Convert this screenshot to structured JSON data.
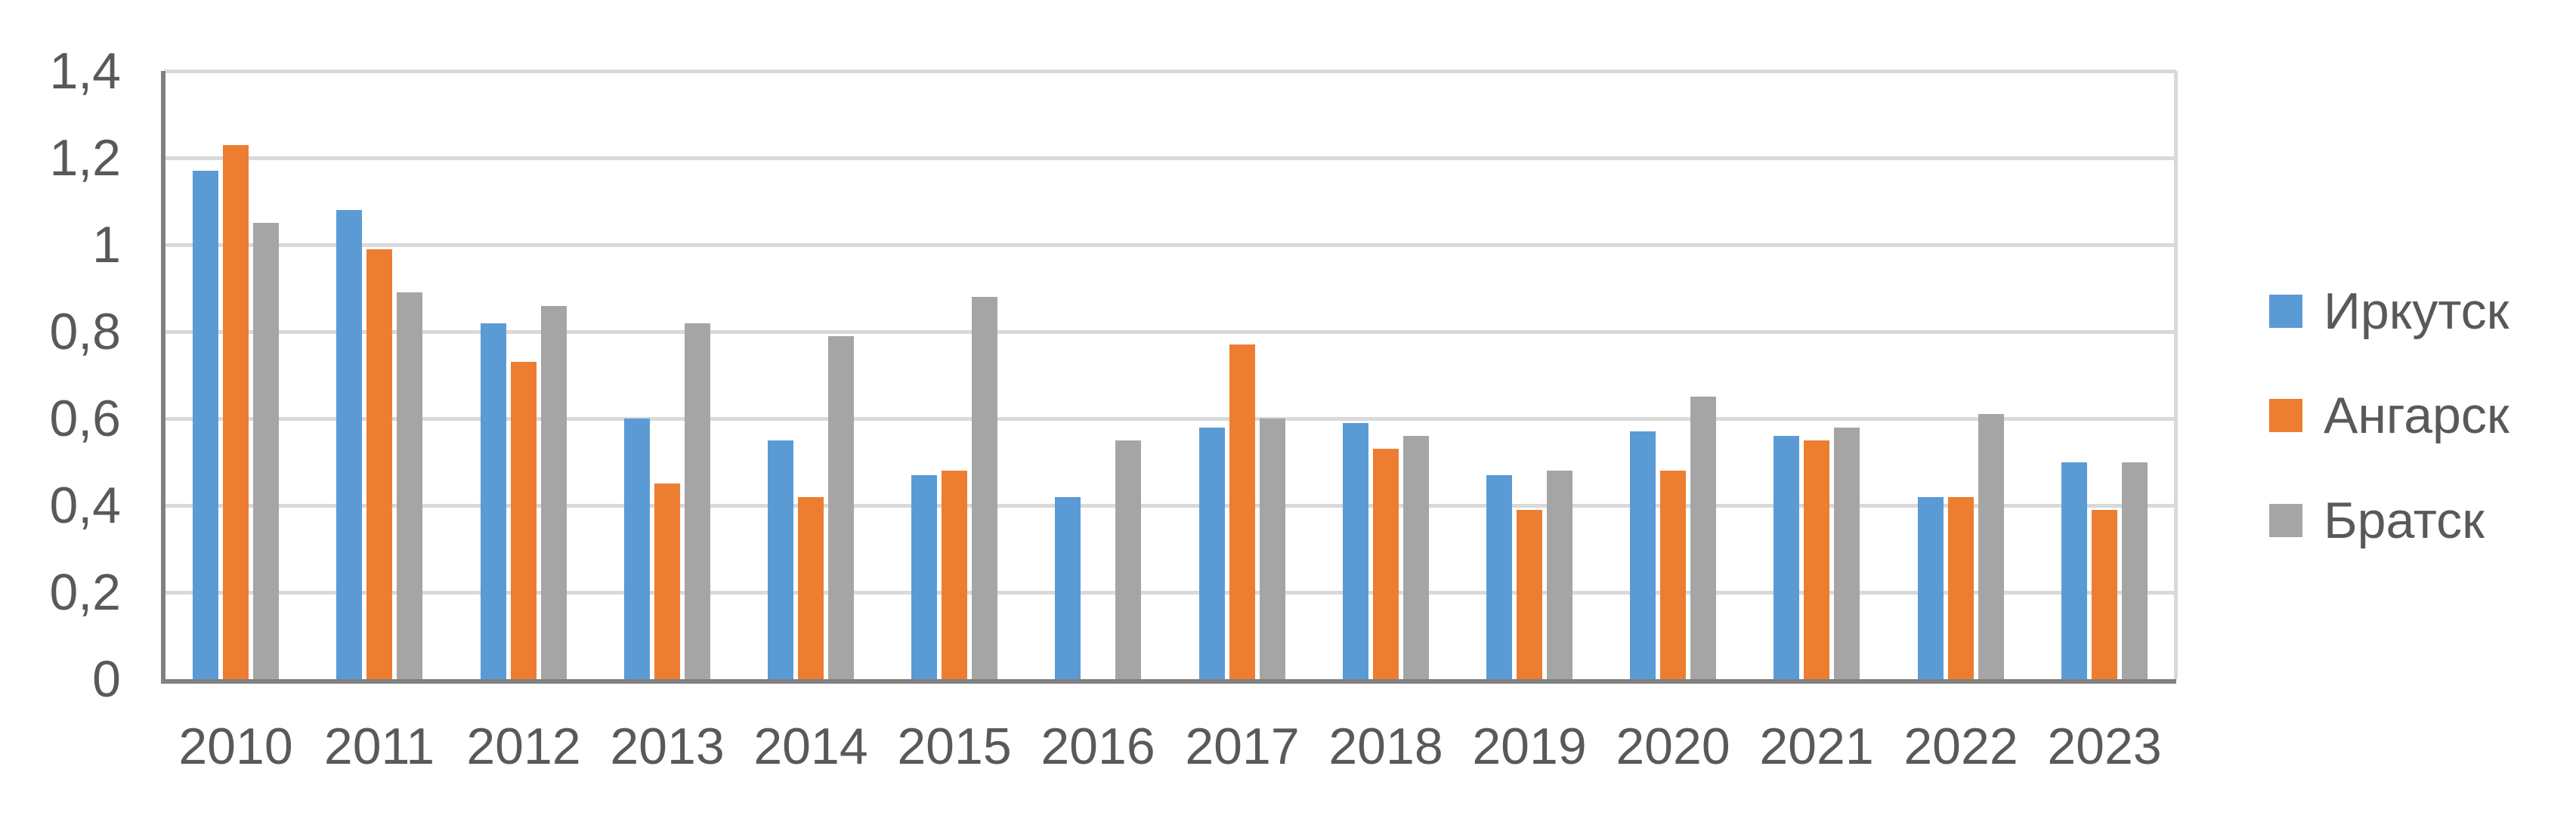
{
  "chart_data": {
    "type": "bar",
    "title": "",
    "categories": [
      "2010",
      "2011",
      "2012",
      "2013",
      "2014",
      "2015",
      "2016",
      "2017",
      "2018",
      "2019",
      "2020",
      "2021",
      "2022",
      "2023"
    ],
    "series": [
      {
        "name": "Иркутск",
        "color": "#5B9BD5",
        "values": [
          1.17,
          1.08,
          0.82,
          0.6,
          0.55,
          0.47,
          0.42,
          0.58,
          0.59,
          0.47,
          0.57,
          0.56,
          0.42,
          0.5
        ]
      },
      {
        "name": "Ангарск",
        "color": "#ED7D31",
        "values": [
          1.23,
          0.99,
          0.73,
          0.45,
          0.42,
          0.48,
          null,
          0.77,
          0.53,
          0.39,
          0.48,
          0.55,
          0.42,
          0.39
        ]
      },
      {
        "name": "Братск",
        "color": "#A5A5A5",
        "values": [
          1.05,
          0.89,
          0.86,
          0.82,
          0.79,
          0.88,
          0.55,
          0.6,
          0.56,
          0.48,
          0.65,
          0.58,
          0.61,
          0.5
        ]
      }
    ],
    "xlabel": "",
    "ylabel": "",
    "ylim": [
      0,
      1.4
    ],
    "ytick_step": 0.2,
    "ytick_labels_top_down": [
      "1,4",
      "1,2",
      "1",
      "0,8",
      "0,6",
      "0,4",
      "0,2",
      "0"
    ],
    "decimal_separator": ",",
    "grid": true,
    "legend_position": "right"
  },
  "style": {
    "gridline_color": "#d9d9d9",
    "axis_line_color": "#808080",
    "tick_text_color": "#595959",
    "background_color": "#ffffff"
  }
}
